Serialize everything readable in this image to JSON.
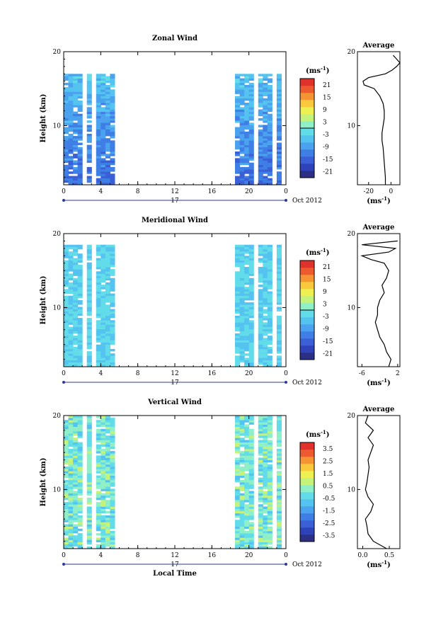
{
  "colors": {
    "scale": [
      "#2b2f86",
      "#2f43b8",
      "#3a5fd6",
      "#3f7ee4",
      "#4ba2ee",
      "#55c3f0",
      "#63dcea",
      "#8ff0c8",
      "#c4f27a",
      "#eef051",
      "#f9c83c",
      "#f59433",
      "#ee5a2f",
      "#e0322a"
    ],
    "line": "#000000"
  },
  "layout_labels": {
    "height_label": "Height (km)",
    "time_ticks": [
      "0",
      "4",
      "8",
      "12",
      "16",
      "20",
      "0"
    ],
    "date_day": "17",
    "date_month": "Oct 2012",
    "xlabel": "Local Time",
    "average_title": "Average",
    "unit_label": "(ms",
    "unit_sup": "-1",
    "unit_close": ")"
  },
  "chart_data": [
    {
      "type": "heatmap",
      "title": "Zonal Wind",
      "ylabel": "Height (km)",
      "xlabel": "",
      "xlim": [
        0,
        24
      ],
      "ylim": [
        2,
        20
      ],
      "x_ticks": [
        "0",
        "4",
        "8",
        "12",
        "16",
        "20",
        "0"
      ],
      "y_ticks": [
        "10",
        "20"
      ],
      "colorbar": {
        "label": "(ms-1)",
        "range": [
          -24,
          24
        ],
        "ticks": [
          "21",
          "15",
          "9",
          "3",
          "-3",
          "-9",
          "-15",
          "-21"
        ]
      },
      "data_columns_hours": [
        0,
        0.5,
        1,
        1.5,
        2.5,
        3.5,
        4,
        4.5,
        5,
        18.5,
        19,
        19.5,
        20,
        21,
        21.5,
        22,
        23
      ],
      "data_height_range_km": [
        2,
        17
      ],
      "typical_value_ms": -10,
      "average_profile": {
        "title": "Average",
        "xlabel": "(ms-1)",
        "x_ticks": [
          "-20",
          "0"
        ],
        "xlim": [
          -30,
          8
        ],
        "heights": [
          2,
          3,
          4,
          5,
          6,
          7,
          8,
          9,
          10,
          11,
          12,
          13,
          14,
          15,
          15.5,
          16,
          16.5,
          17,
          17.5,
          18,
          18.5,
          19,
          19.5
        ],
        "values": [
          -5,
          -5,
          -5.5,
          -6,
          -6.5,
          -7,
          -8,
          -8,
          -7,
          -6,
          -6,
          -7,
          -10,
          -15,
          -24,
          -25,
          -20,
          -5,
          1,
          5,
          8,
          5,
          2
        ]
      }
    },
    {
      "type": "heatmap",
      "title": "Meridional Wind",
      "ylabel": "Height (km)",
      "xlabel": "",
      "xlim": [
        0,
        24
      ],
      "ylim": [
        2,
        20
      ],
      "x_ticks": [
        "0",
        "4",
        "8",
        "12",
        "16",
        "20",
        "0"
      ],
      "y_ticks": [
        "10",
        "20"
      ],
      "colorbar": {
        "label": "(ms-1)",
        "range": [
          -24,
          24
        ],
        "ticks": [
          "21",
          "15",
          "9",
          "3",
          "-3",
          "-9",
          "-15",
          "-21"
        ]
      },
      "data_columns_hours": [
        0,
        0.5,
        1,
        1.5,
        2.5,
        3.5,
        4,
        4.5,
        5,
        18.5,
        19,
        19.5,
        20,
        21,
        21.5,
        22,
        23
      ],
      "data_height_range_km": [
        2,
        18.5
      ],
      "typical_value_ms": -4,
      "average_profile": {
        "title": "Average",
        "xlabel": "(ms-1)",
        "x_ticks": [
          "-6",
          "2"
        ],
        "xlim": [
          -7,
          2.5
        ],
        "heights": [
          2,
          3,
          4,
          5,
          6,
          7,
          8,
          9,
          10,
          11,
          12,
          13,
          14,
          15,
          16,
          16.5,
          17,
          17.5,
          18,
          18.5,
          19
        ],
        "values": [
          0,
          0.5,
          -0.5,
          -1,
          -2,
          -2.5,
          -3,
          -2.5,
          -2.5,
          -2,
          -1,
          -1.5,
          -0.5,
          0,
          -1,
          -4,
          -6,
          0,
          1.5,
          -6,
          2
        ]
      }
    },
    {
      "type": "heatmap",
      "title": "Vertical Wind",
      "ylabel": "Height (km)",
      "xlabel": "Local Time",
      "xlim": [
        0,
        24
      ],
      "ylim": [
        2,
        20
      ],
      "x_ticks": [
        "0",
        "4",
        "8",
        "12",
        "16",
        "20",
        "0"
      ],
      "y_ticks": [
        "10",
        "20"
      ],
      "colorbar": {
        "label": "(ms-1)",
        "range": [
          -4,
          4
        ],
        "ticks": [
          "3.5",
          "2.5",
          "1.5",
          "0.5",
          "-0.5",
          "-1.5",
          "-2.5",
          "-3.5"
        ]
      },
      "data_columns_hours": [
        0,
        0.5,
        1,
        1.5,
        2.5,
        3.5,
        4,
        4.5,
        5,
        18.5,
        19,
        19.5,
        20,
        21,
        21.5,
        22,
        23
      ],
      "data_height_range_km": [
        2,
        20
      ],
      "typical_value_ms": 0,
      "average_profile": {
        "title": "Average",
        "xlabel": "(ms-1)",
        "x_ticks": [
          "0.0",
          "0.5"
        ],
        "xlim": [
          -0.1,
          0.7
        ],
        "heights": [
          2,
          3,
          4,
          5,
          6,
          7,
          8,
          9,
          10,
          11,
          12,
          13,
          14,
          15,
          16,
          17,
          18,
          19,
          20
        ],
        "values": [
          0.45,
          0.2,
          0.1,
          0.08,
          0.05,
          0.15,
          0.2,
          0.1,
          0.05,
          0.08,
          0.1,
          0.12,
          0.1,
          0.15,
          0.2,
          0.1,
          0.2,
          0.05,
          0.1
        ]
      }
    }
  ]
}
